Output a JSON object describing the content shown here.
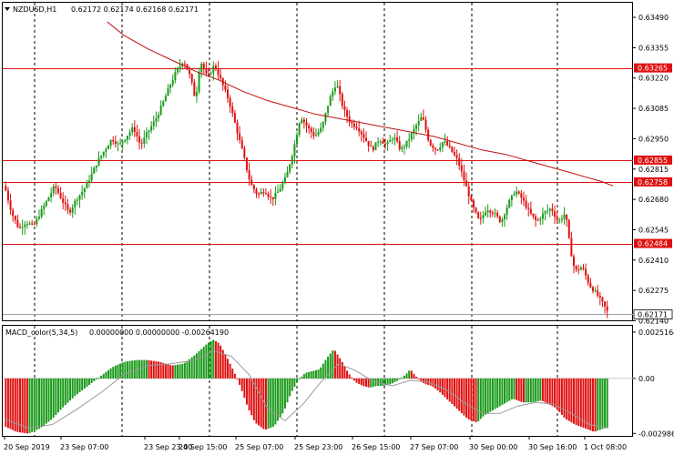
{
  "header": {
    "symbol": "NZDUSD,H1",
    "ohlc": "0.62172 0.62174 0.62168 0.62171"
  },
  "indicator": {
    "name": "MACD_color(5,34,5)",
    "values": "0.00000000 0.00000000 -0.00264190"
  },
  "colors": {
    "bull": "#1a9a1a",
    "bear": "#e01010",
    "level_line": "#e01010",
    "ma_line": "#c01010",
    "grid": "#000000",
    "signal": "#9a9a9a"
  },
  "chart_data": [
    {
      "type": "candlestick",
      "ylim": [
        0.62142,
        0.63555
      ],
      "y_ticks": [
        "0.63490",
        "0.63355",
        "0.63220",
        "0.63085",
        "0.62950",
        "0.62815",
        "0.62680",
        "0.62545",
        "0.62410",
        "0.62275",
        "0.62140"
      ],
      "y_tick_values": [
        0.6349,
        0.63355,
        0.6322,
        0.63085,
        0.6295,
        0.62815,
        0.6268,
        0.62545,
        0.6241,
        0.62275,
        0.6214
      ],
      "x_labels": [
        "20 Sep 2019",
        "23 Sep 07:00",
        "23 Sep 23:00",
        "24 Sep 15:00",
        "25 Sep 07:00",
        "25 Sep 23:00",
        "26 Sep 15:00",
        "27 Sep 07:00",
        "30 Sep 00:00",
        "30 Sep 16:00",
        "1 Oct 08:00"
      ],
      "levels": [
        {
          "value": 0.63265,
          "label": "0.63265"
        },
        {
          "value": 0.62855,
          "label": "0.62855"
        },
        {
          "value": 0.62758,
          "label": "0.62758"
        },
        {
          "value": 0.62484,
          "label": "0.62484"
        }
      ],
      "current_price": {
        "value": 0.62171,
        "label": "0.62171"
      },
      "close_path": [
        [
          0,
          0.6274
        ],
        [
          6,
          0.6262
        ],
        [
          12,
          0.6255
        ],
        [
          18,
          0.6258
        ],
        [
          24,
          0.6256
        ],
        [
          30,
          0.6262
        ],
        [
          36,
          0.6268
        ],
        [
          42,
          0.6274
        ],
        [
          48,
          0.6268
        ],
        [
          54,
          0.6262
        ],
        [
          60,
          0.6268
        ],
        [
          66,
          0.6272
        ],
        [
          72,
          0.6278
        ],
        [
          78,
          0.6285
        ],
        [
          84,
          0.629
        ],
        [
          90,
          0.6295
        ],
        [
          96,
          0.6292
        ],
        [
          102,
          0.6296
        ],
        [
          108,
          0.63
        ],
        [
          114,
          0.6292
        ],
        [
          120,
          0.6298
        ],
        [
          126,
          0.6303
        ],
        [
          132,
          0.631
        ],
        [
          138,
          0.6318
        ],
        [
          144,
          0.6325
        ],
        [
          150,
          0.633
        ],
        [
          156,
          0.6322
        ],
        [
          160,
          0.6312
        ],
        [
          164,
          0.633
        ],
        [
          170,
          0.6322
        ],
        [
          176,
          0.6328
        ],
        [
          182,
          0.632
        ],
        [
          188,
          0.6312
        ],
        [
          194,
          0.63
        ],
        [
          200,
          0.6288
        ],
        [
          206,
          0.6275
        ],
        [
          212,
          0.627
        ],
        [
          218,
          0.6272
        ],
        [
          224,
          0.6268
        ],
        [
          230,
          0.6272
        ],
        [
          236,
          0.6278
        ],
        [
          242,
          0.629
        ],
        [
          248,
          0.6305
        ],
        [
          254,
          0.63
        ],
        [
          260,
          0.6296
        ],
        [
          266,
          0.63
        ],
        [
          272,
          0.6312
        ],
        [
          278,
          0.632
        ],
        [
          284,
          0.6308
        ],
        [
          290,
          0.6302
        ],
        [
          296,
          0.63
        ],
        [
          302,
          0.6295
        ],
        [
          308,
          0.629
        ],
        [
          314,
          0.6295
        ],
        [
          320,
          0.6292
        ],
        [
          326,
          0.6296
        ],
        [
          332,
          0.629
        ],
        [
          338,
          0.6294
        ],
        [
          344,
          0.63
        ],
        [
          350,
          0.6305
        ],
        [
          356,
          0.6293
        ],
        [
          362,
          0.629
        ],
        [
          368,
          0.6294
        ],
        [
          374,
          0.629
        ],
        [
          380,
          0.6285
        ],
        [
          386,
          0.6275
        ],
        [
          392,
          0.6265
        ],
        [
          398,
          0.6258
        ],
        [
          404,
          0.6264
        ],
        [
          410,
          0.6262
        ],
        [
          416,
          0.6258
        ],
        [
          422,
          0.6266
        ],
        [
          428,
          0.6272
        ],
        [
          434,
          0.6268
        ],
        [
          440,
          0.6262
        ],
        [
          446,
          0.6258
        ],
        [
          452,
          0.6262
        ],
        [
          458,
          0.6264
        ],
        [
          464,
          0.6258
        ],
        [
          470,
          0.6262
        ],
        [
          474,
          0.6246
        ],
        [
          478,
          0.6236
        ],
        [
          484,
          0.6238
        ],
        [
          490,
          0.623
        ],
        [
          496,
          0.6226
        ],
        [
          502,
          0.6221
        ],
        [
          506,
          0.62171
        ]
      ],
      "ma_path": [
        [
          86,
          0.6347
        ],
        [
          100,
          0.6341
        ],
        [
          120,
          0.6335
        ],
        [
          140,
          0.633
        ],
        [
          160,
          0.6325
        ],
        [
          180,
          0.6321
        ],
        [
          200,
          0.6316
        ],
        [
          220,
          0.6312
        ],
        [
          240,
          0.6309
        ],
        [
          260,
          0.6306
        ],
        [
          280,
          0.6304
        ],
        [
          300,
          0.6302
        ],
        [
          320,
          0.63
        ],
        [
          340,
          0.6298
        ],
        [
          360,
          0.6296
        ],
        [
          380,
          0.6293
        ],
        [
          400,
          0.629
        ],
        [
          420,
          0.6288
        ],
        [
          440,
          0.6285
        ],
        [
          460,
          0.6282
        ],
        [
          480,
          0.6279
        ],
        [
          500,
          0.6276
        ],
        [
          510,
          0.6274
        ]
      ]
    },
    {
      "type": "histogram",
      "ylim": [
        -0.00312,
        0.00286
      ],
      "y_ticks": [
        "0.0025164",
        "0.00",
        "-0.002986"
      ],
      "y_tick_values": [
        0.0025164,
        0.0,
        -0.002986
      ],
      "hist_path": [
        [
          0,
          -0.0026
        ],
        [
          10,
          -0.0029
        ],
        [
          20,
          -0.003
        ],
        [
          30,
          -0.0027
        ],
        [
          40,
          -0.0022
        ],
        [
          50,
          -0.0015
        ],
        [
          60,
          -0.0009
        ],
        [
          70,
          -0.0004
        ],
        [
          80,
          0.0001
        ],
        [
          90,
          0.0006
        ],
        [
          100,
          0.0009
        ],
        [
          110,
          0.001
        ],
        [
          120,
          0.001
        ],
        [
          130,
          0.0009
        ],
        [
          140,
          0.0007
        ],
        [
          150,
          0.0008
        ],
        [
          160,
          0.0013
        ],
        [
          170,
          0.0019
        ],
        [
          175,
          0.0021
        ],
        [
          180,
          0.0019
        ],
        [
          186,
          0.0012
        ],
        [
          192,
          0.0004
        ],
        [
          198,
          -0.0005
        ],
        [
          204,
          -0.0016
        ],
        [
          210,
          -0.0024
        ],
        [
          218,
          -0.0028
        ],
        [
          226,
          -0.0026
        ],
        [
          234,
          -0.0018
        ],
        [
          240,
          -0.0008
        ],
        [
          246,
          -0.0001
        ],
        [
          252,
          0.0003
        ],
        [
          258,
          0.0004
        ],
        [
          264,
          0.0005
        ],
        [
          270,
          0.0011
        ],
        [
          276,
          0.0016
        ],
        [
          282,
          0.001
        ],
        [
          288,
          0.0003
        ],
        [
          294,
          -0.0002
        ],
        [
          300,
          -0.0004
        ],
        [
          306,
          -0.0005
        ],
        [
          312,
          -0.0004
        ],
        [
          318,
          -0.0004
        ],
        [
          324,
          -0.0003
        ],
        [
          330,
          -0.0001
        ],
        [
          336,
          0.0002
        ],
        [
          340,
          0.0005
        ],
        [
          346,
          0.0
        ],
        [
          352,
          -0.0003
        ],
        [
          358,
          -0.0004
        ],
        [
          364,
          -0.0007
        ],
        [
          372,
          -0.0012
        ],
        [
          380,
          -0.0017
        ],
        [
          388,
          -0.0022
        ],
        [
          396,
          -0.0024
        ],
        [
          402,
          -0.002
        ],
        [
          410,
          -0.0017
        ],
        [
          418,
          -0.0014
        ],
        [
          426,
          -0.0011
        ],
        [
          434,
          -0.0013
        ],
        [
          442,
          -0.0013
        ],
        [
          450,
          -0.0012
        ],
        [
          456,
          -0.0014
        ],
        [
          462,
          -0.0016
        ],
        [
          470,
          -0.0022
        ],
        [
          478,
          -0.0025
        ],
        [
          486,
          -0.0027
        ],
        [
          494,
          -0.0029
        ],
        [
          506,
          -0.00264
        ]
      ],
      "signal_path": [
        [
          0,
          -0.0022
        ],
        [
          20,
          -0.0027
        ],
        [
          40,
          -0.0025
        ],
        [
          60,
          -0.0017
        ],
        [
          80,
          -0.0008
        ],
        [
          100,
          0.0002
        ],
        [
          120,
          0.0007
        ],
        [
          140,
          0.0008
        ],
        [
          160,
          0.001
        ],
        [
          175,
          0.0015
        ],
        [
          190,
          0.0012
        ],
        [
          205,
          0.0002
        ],
        [
          220,
          -0.0016
        ],
        [
          235,
          -0.0023
        ],
        [
          250,
          -0.0014
        ],
        [
          265,
          -0.0002
        ],
        [
          280,
          0.0008
        ],
        [
          295,
          0.0004
        ],
        [
          310,
          -0.0002
        ],
        [
          325,
          -0.0004
        ],
        [
          340,
          -0.0001
        ],
        [
          355,
          -0.0002
        ],
        [
          370,
          -0.0006
        ],
        [
          385,
          -0.0013
        ],
        [
          400,
          -0.0019
        ],
        [
          415,
          -0.0019
        ],
        [
          430,
          -0.0015
        ],
        [
          445,
          -0.0013
        ],
        [
          460,
          -0.0014
        ],
        [
          475,
          -0.0019
        ],
        [
          490,
          -0.0025
        ],
        [
          506,
          -0.0027
        ]
      ]
    }
  ]
}
